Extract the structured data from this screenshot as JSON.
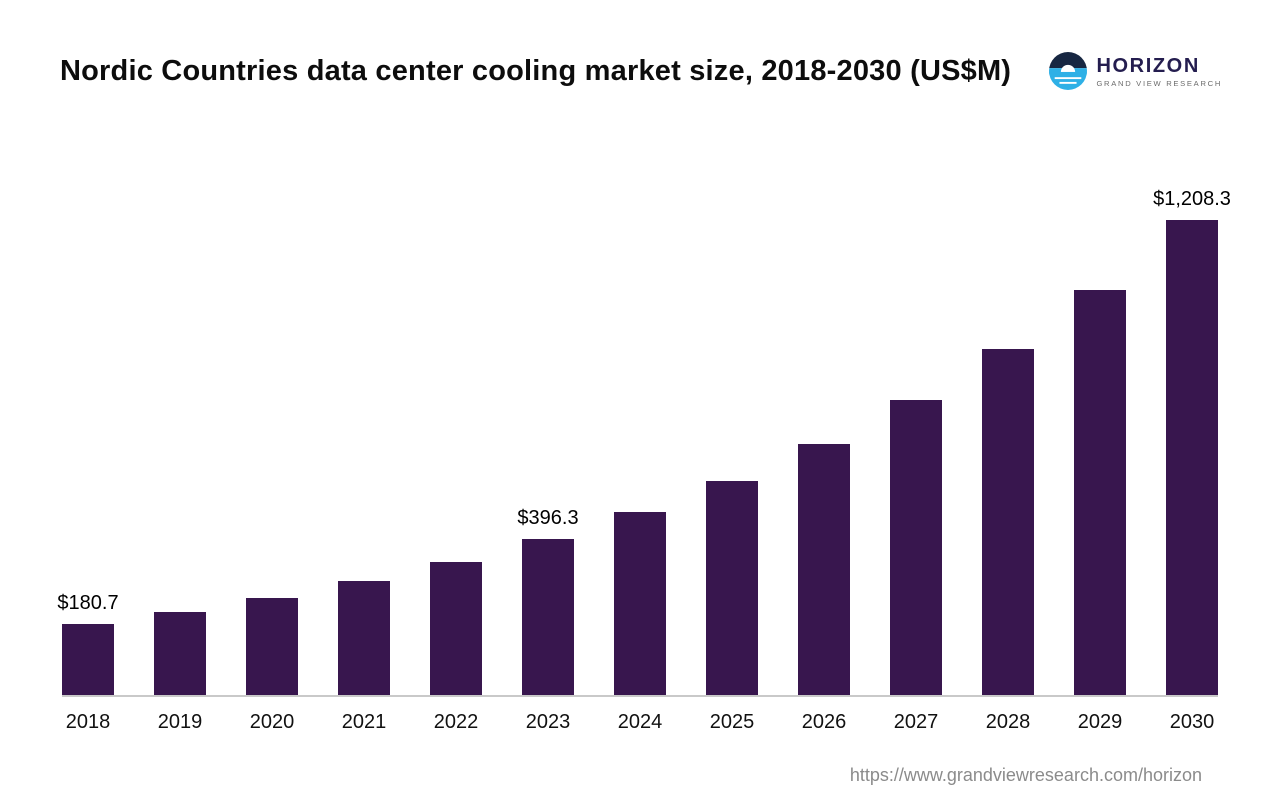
{
  "title": "Nordic Countries data center cooling market size, 2018-2030 (US$M)",
  "logo": {
    "name": "HORIZON",
    "subtitle": "GRAND VIEW RESEARCH"
  },
  "footer": {
    "url": "https://www.grandviewresearch.com/horizon"
  },
  "colors": {
    "bar": "#38164e",
    "axis": "#c9c9c9",
    "logo_primary": "#241d4f",
    "logo_accent": "#2eb0e6",
    "logo_dark": "#172742",
    "footer_text": "#8b8b8b"
  },
  "chart_data": {
    "type": "bar",
    "title": "Nordic Countries data center cooling market size, 2018-2030 (US$M)",
    "xlabel": "",
    "ylabel": "",
    "ylim": [
      0,
      1300
    ],
    "grid": false,
    "legend": false,
    "categories": [
      "2018",
      "2019",
      "2020",
      "2021",
      "2022",
      "2023",
      "2024",
      "2025",
      "2026",
      "2027",
      "2028",
      "2029",
      "2030"
    ],
    "values": [
      180.7,
      211.4,
      247.4,
      289.5,
      338.7,
      396.3,
      464.7,
      545.0,
      639.1,
      749.5,
      878.9,
      1030.7,
      1208.3
    ],
    "labeled_points": [
      {
        "category": "2018",
        "label": "$180.7"
      },
      {
        "category": "2023",
        "label": "$396.3"
      },
      {
        "category": "2030",
        "label": "$1,208.3"
      }
    ]
  }
}
